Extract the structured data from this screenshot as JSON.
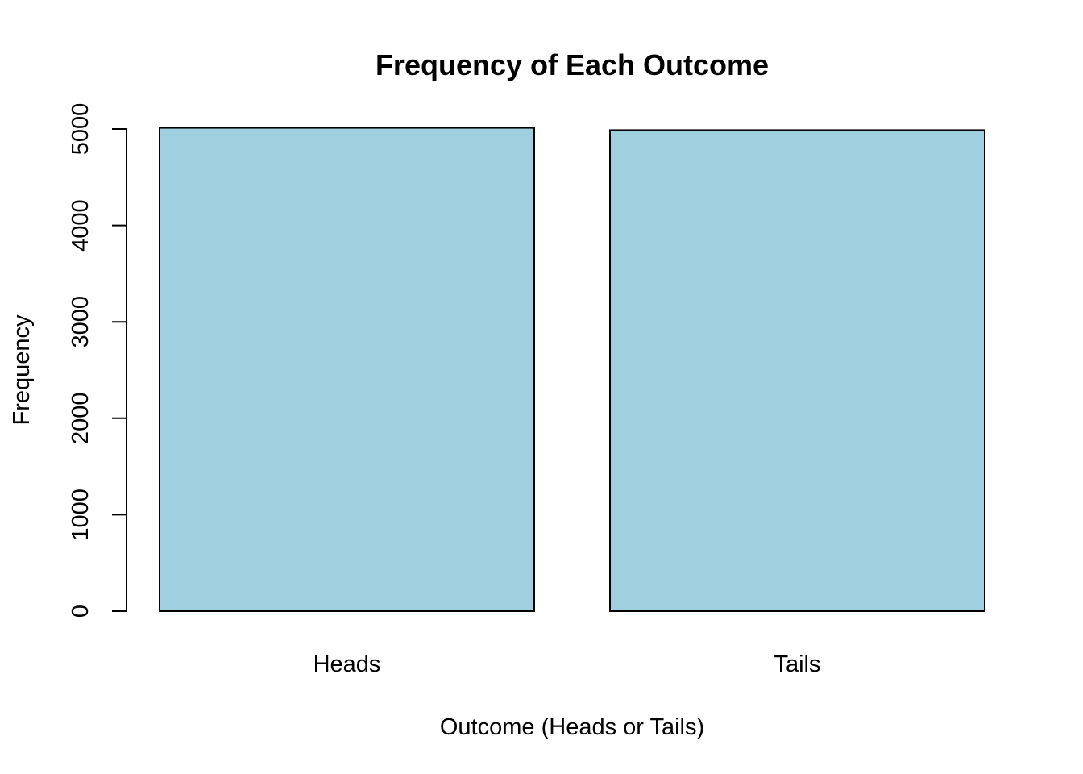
{
  "chart_data": {
    "type": "bar",
    "title": "Frequency of Each Outcome",
    "xlabel": "Outcome (Heads or Tails)",
    "ylabel": "Frequency",
    "categories": [
      "Heads",
      "Tails"
    ],
    "values": [
      5012,
      4988
    ],
    "ylim": [
      0,
      5000
    ],
    "yticks": [
      0,
      1000,
      2000,
      3000,
      4000,
      5000
    ],
    "ytick_labels": [
      "0",
      "1000",
      "2000",
      "3000",
      "4000",
      "5000"
    ],
    "bar_color": "#a0cfe0",
    "grid": false,
    "legend": "none"
  }
}
